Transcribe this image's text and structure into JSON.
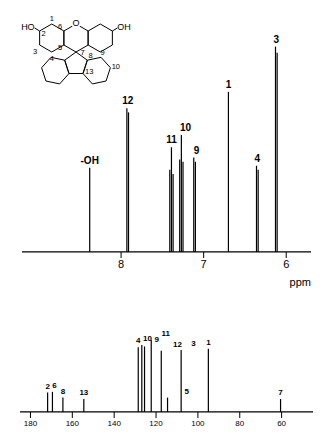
{
  "chart_data": [
    {
      "type": "line",
      "x_label": "ppm",
      "xlim": [
        9.2,
        5.7
      ],
      "xticks": [
        8,
        7,
        6
      ],
      "ylim": [
        0,
        1.12
      ],
      "tick_labels": "x",
      "color": "#000000",
      "peaks": [
        {
          "label": "-OH",
          "x": [
            8.38
          ],
          "heights": [
            0.41
          ]
        },
        {
          "label": "12",
          "x": [
            7.93,
            7.91
          ],
          "heights": [
            0.7,
            0.68
          ]
        },
        {
          "label": "11",
          "x": [
            7.41,
            7.39,
            7.37
          ],
          "heights": [
            0.4,
            0.51,
            0.38
          ]
        },
        {
          "label": "10",
          "x": [
            7.29,
            7.27,
            7.25
          ],
          "heights": [
            0.45,
            0.57,
            0.44
          ]
        },
        {
          "label": "9",
          "x": [
            7.12,
            7.1
          ],
          "heights": [
            0.46,
            0.44
          ]
        },
        {
          "label": "1",
          "x": [
            6.7
          ],
          "heights": [
            0.78
          ]
        },
        {
          "label": "4",
          "x": [
            6.36,
            6.34
          ],
          "heights": [
            0.42,
            0.4
          ]
        },
        {
          "label": "3",
          "x": [
            6.13,
            6.11
          ],
          "heights": [
            1.0,
            0.97
          ]
        }
      ]
    },
    {
      "type": "line",
      "xlim": [
        185,
        45
      ],
      "xticks": [
        180,
        160,
        140,
        120,
        100,
        80,
        60
      ],
      "ylim": [
        0,
        1.5
      ],
      "tick_labels": "x",
      "color": "#000000",
      "peaks": [
        {
          "label": "2",
          "x": [
            171.8
          ],
          "heights": [
            0.27
          ]
        },
        {
          "label": "6",
          "x": [
            169.5
          ],
          "heights": [
            0.28
          ]
        },
        {
          "label": "8",
          "x": [
            164.5
          ],
          "heights": [
            0.2
          ]
        },
        {
          "label": "13",
          "x": [
            154.5
          ],
          "heights": [
            0.18
          ]
        },
        {
          "label": "4",
          "x": [
            128.5
          ],
          "heights": [
            0.9
          ]
        },
        {
          "label": "10",
          "x": [
            126.8
          ],
          "heights": [
            0.93
          ]
        },
        {
          "label": "9",
          "x": [
            125.5
          ],
          "heights": [
            0.91
          ]
        },
        {
          "label": "11",
          "x": [
            122.3
          ],
          "heights": [
            1.0
          ]
        },
        {
          "label": "12",
          "x": [
            117.5
          ],
          "heights": [
            0.85
          ]
        },
        {
          "label": "5",
          "x": [
            114.5
          ],
          "heights": [
            0.2
          ]
        },
        {
          "label": "3",
          "x": [
            108
          ],
          "heights": [
            0.86
          ]
        },
        {
          "label": "1",
          "x": [
            95
          ],
          "heights": [
            0.88
          ]
        },
        {
          "label": "7",
          "x": [
            60.5
          ],
          "heights": [
            0.18
          ]
        }
      ]
    }
  ],
  "structure": {
    "groups": [
      "HO",
      "OH",
      "O"
    ],
    "numbers": [
      "2",
      "1",
      "6",
      "3",
      "5",
      "4",
      "7",
      "8",
      "9",
      "13",
      "10"
    ]
  }
}
